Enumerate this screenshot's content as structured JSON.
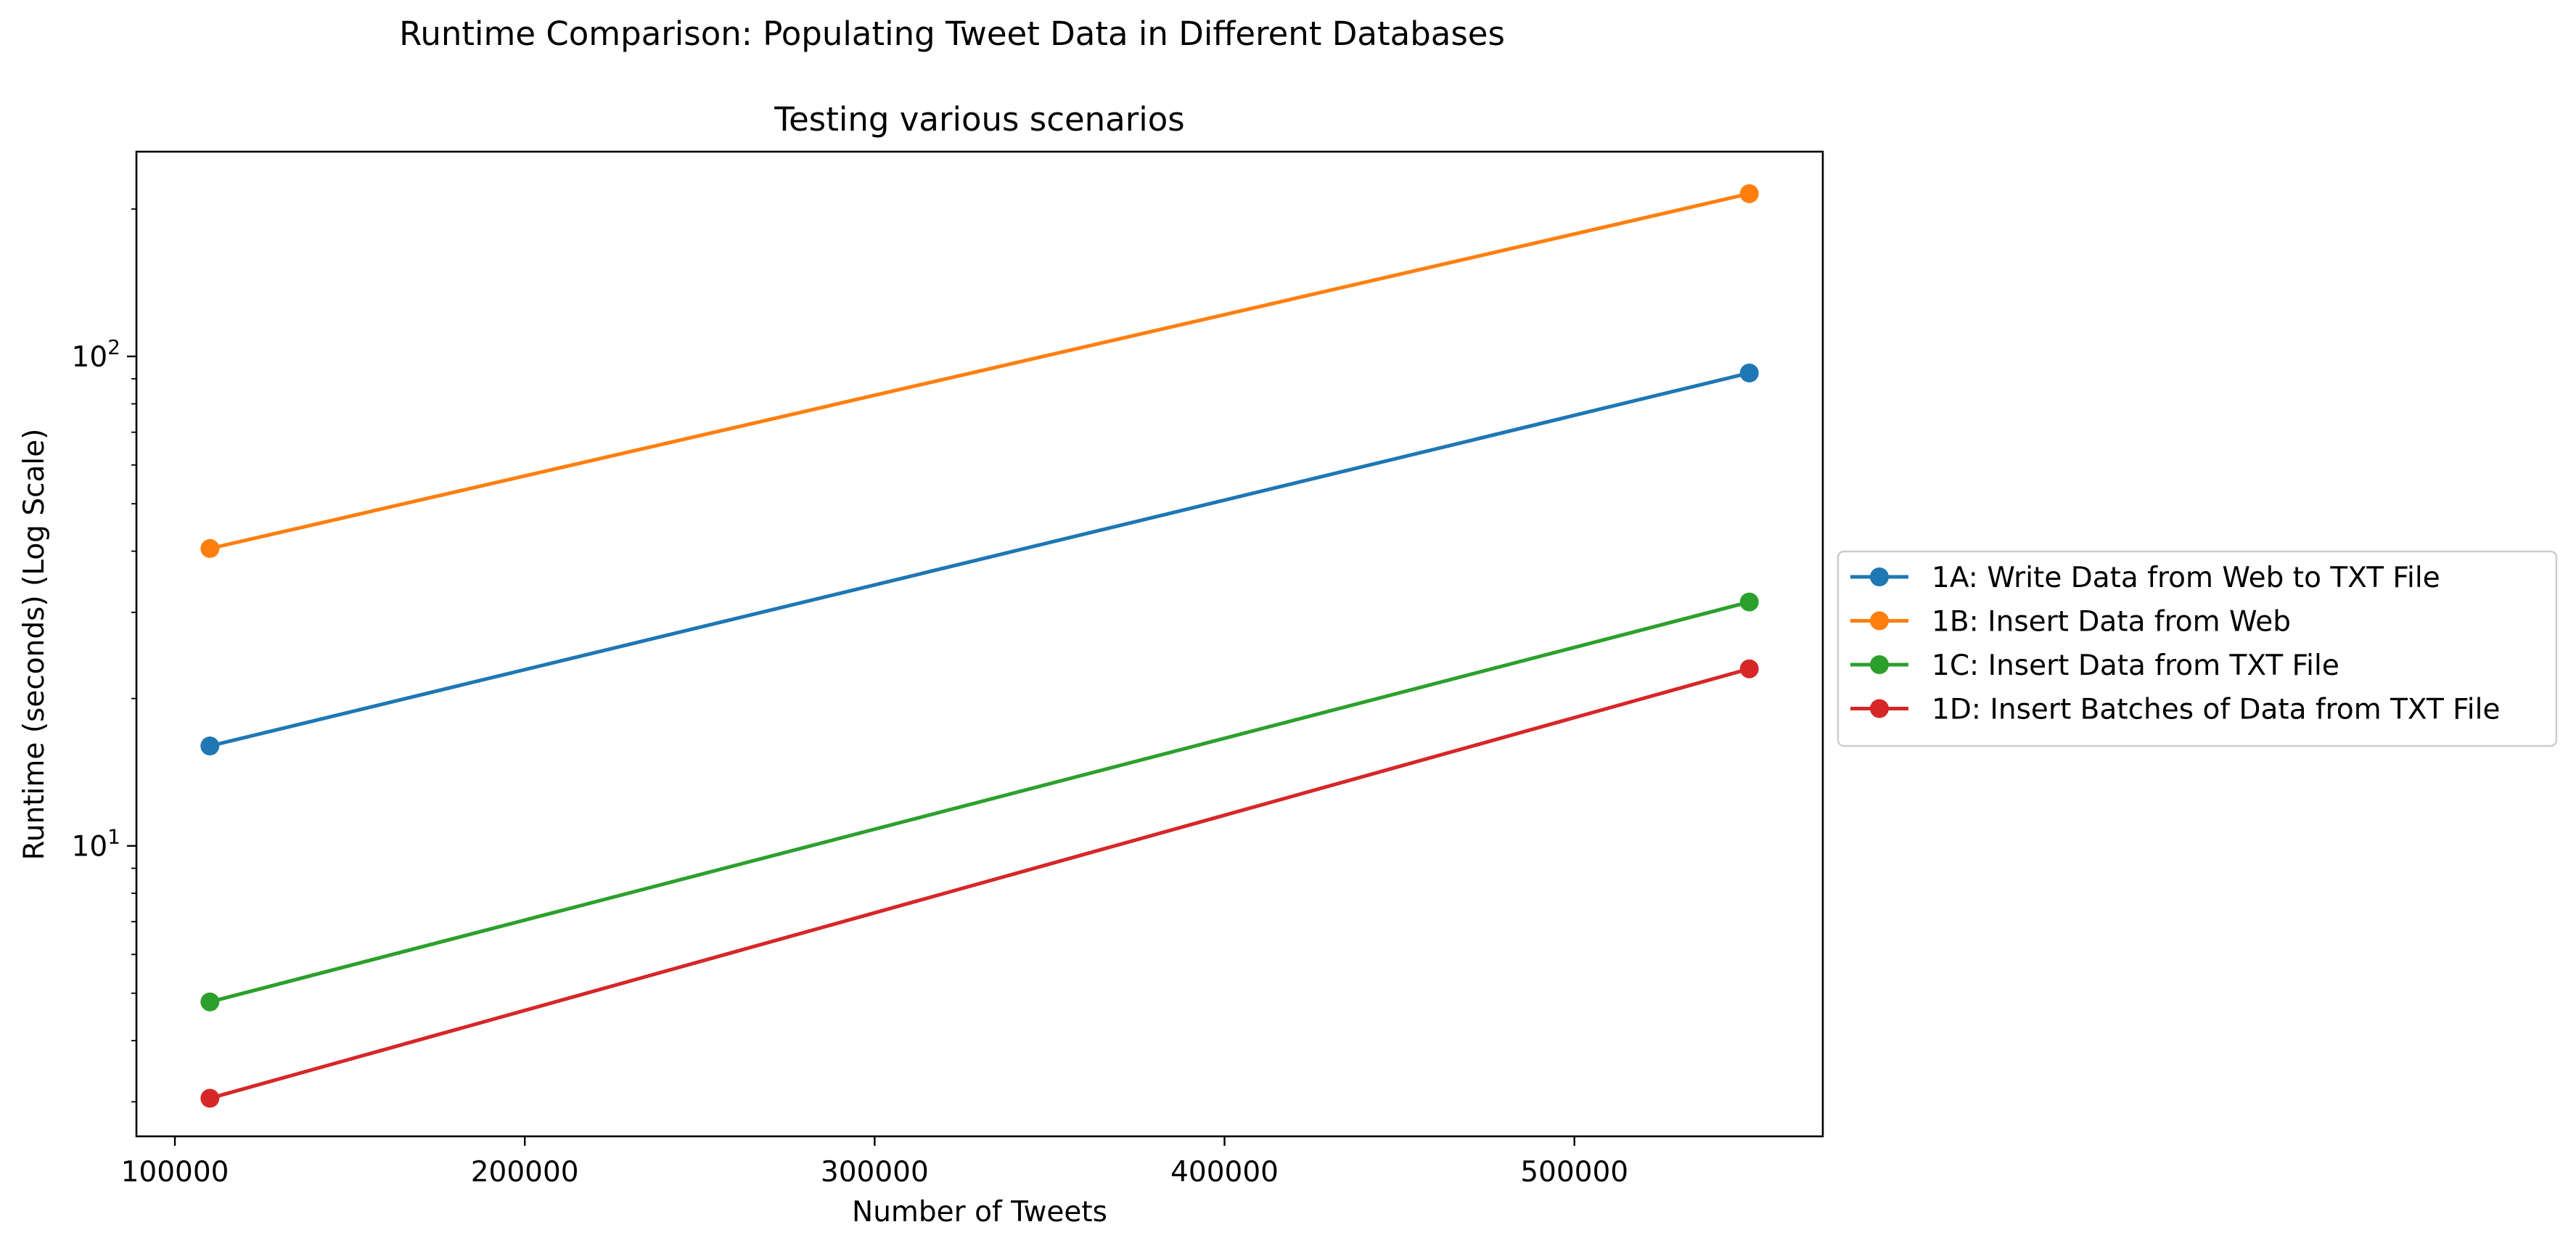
{
  "chart_data": {
    "type": "line",
    "suptitle": "Runtime Comparison: Populating Tweet Data in Different Databases",
    "title": "Testing various scenarios",
    "xlabel": "Number of Tweets",
    "ylabel": "Runtime (seconds) (Log Scale)",
    "yscale": "log",
    "x": [
      110000,
      550000
    ],
    "xlim": [
      89000,
      571000
    ],
    "ylim": [
      2.55,
      262
    ],
    "xticks": [
      100000,
      200000,
      300000,
      400000,
      500000
    ],
    "xtick_labels": [
      "100000",
      "200000",
      "300000",
      "400000",
      "500000"
    ],
    "yticks": [
      10,
      100
    ],
    "grid": false,
    "legend_position": "right (outside plot, center)",
    "series": [
      {
        "name": "1A: Write Data from Web to TXT File",
        "values": [
          16.0,
          92.5
        ],
        "color": "#1f77b4"
      },
      {
        "name": "1B: Insert Data from Web",
        "values": [
          40.5,
          215.0
        ],
        "color": "#ff7f0e"
      },
      {
        "name": "1C: Insert Data from TXT File",
        "values": [
          4.8,
          31.5
        ],
        "color": "#2ca02c"
      },
      {
        "name": "1D: Insert Batches of Data from TXT File",
        "values": [
          3.05,
          23.0
        ],
        "color": "#d62728"
      }
    ]
  }
}
